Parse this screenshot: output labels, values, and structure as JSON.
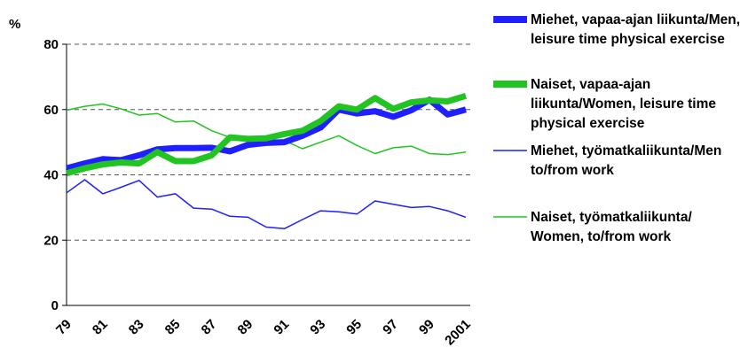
{
  "chart_data": {
    "type": "line",
    "y_label": "%",
    "categories": [
      "79",
      null,
      "81",
      null,
      "83",
      null,
      "85",
      null,
      "87",
      null,
      "89",
      null,
      "91",
      null,
      "93",
      null,
      "95",
      null,
      "97",
      null,
      "99",
      null,
      "2001"
    ],
    "ylim": [
      0,
      80
    ],
    "yticks": [
      0,
      20,
      40,
      60,
      80
    ],
    "grid": true,
    "series": [
      {
        "name": "Miehet, vapaa-ajan liikunta/Men, leisure time physical exercise",
        "color": "#1f1fff",
        "width": "thick",
        "values": [
          42,
          43.5,
          44.8,
          44.5,
          46,
          47.8,
          48.2,
          48.2,
          48.3,
          47.2,
          49.2,
          49.8,
          50,
          52,
          54.5,
          60,
          58.8,
          59.5,
          57.8,
          59.8,
          63,
          58.5,
          60
        ]
      },
      {
        "name": "Naiset, vapaa-ajan liikunta/Women, leisure time physical exercise",
        "color": "#22c422",
        "width": "thick",
        "values": [
          40.5,
          42,
          43.2,
          43.8,
          43.5,
          47,
          44.2,
          44.2,
          46,
          51.5,
          51,
          51.2,
          52.5,
          53.5,
          56.5,
          61,
          60,
          63.5,
          60.2,
          62.2,
          62.8,
          62.5,
          64.2
        ]
      },
      {
        "name": "Miehet, työmatkaliikunta/Men to/from work",
        "color": "#1f1fff",
        "width": "thin",
        "values": [
          34.5,
          38.5,
          34.2,
          36.2,
          38.3,
          33.2,
          34.2,
          29.8,
          29.5,
          27.3,
          27,
          24,
          23.5,
          26.3,
          29,
          28.7,
          28,
          32,
          31,
          30,
          30.3,
          29,
          27
        ]
      },
      {
        "name": "Naiset, työmatkaliikunta/ Women, to/from work",
        "color": "#22c422",
        "width": "thin",
        "values": [
          59.8,
          61,
          61.7,
          60.2,
          58.3,
          58.8,
          56.2,
          56.5,
          53.5,
          51.5,
          50.5,
          50.5,
          50.5,
          48,
          50,
          52,
          49,
          46.5,
          48.3,
          48.8,
          46.5,
          46.2,
          47
        ]
      }
    ]
  }
}
